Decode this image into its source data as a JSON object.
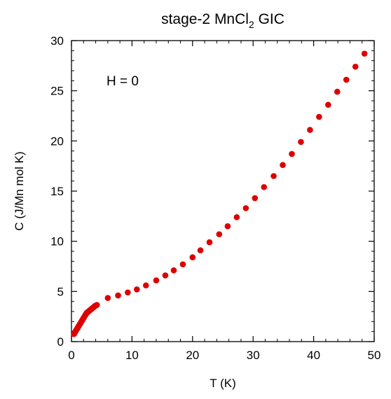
{
  "chart_data": {
    "type": "scatter",
    "title_main": "stage-2 MnCl",
    "title_sub": "2",
    "title_end": " GIC",
    "xlabel": "T (K)",
    "ylabel": "C (J/Mn mol K)",
    "annotation": "H = 0",
    "xlim": [
      0,
      50
    ],
    "ylim": [
      0,
      30
    ],
    "xticks": [
      "0",
      "10",
      "20",
      "30",
      "40",
      "50"
    ],
    "yticks": [
      "0",
      "5",
      "10",
      "15",
      "20",
      "25",
      "30"
    ],
    "grid": false,
    "marker_color": "#dd0000",
    "series": [
      {
        "x": [
          0.4,
          0.5,
          0.6,
          0.7,
          0.8,
          0.9,
          1.0,
          1.1,
          1.2,
          1.3,
          1.4,
          1.5,
          1.6,
          1.7,
          1.8,
          1.9,
          2.0,
          2.1,
          2.2,
          2.3,
          2.4,
          2.5,
          2.6,
          2.7,
          2.8,
          2.9,
          3.0,
          3.1,
          3.2,
          3.3,
          3.4,
          3.5,
          3.6,
          3.7,
          3.8,
          3.9,
          4.0,
          4.2,
          6.0,
          7.7,
          9.3,
          10.8,
          12.3,
          14.0,
          15.5,
          16.9,
          18.4,
          20.0,
          21.3,
          22.8,
          24.4,
          25.8,
          27.3,
          28.8,
          30.3,
          31.8,
          33.4,
          34.9,
          36.4,
          37.9,
          39.4,
          40.9,
          42.4,
          43.9,
          45.4,
          46.9,
          48.4
        ],
        "y": [
          0.75,
          0.85,
          0.95,
          1.05,
          1.15,
          1.25,
          1.35,
          1.45,
          1.55,
          1.65,
          1.75,
          1.85,
          1.95,
          2.05,
          2.15,
          2.25,
          2.35,
          2.45,
          2.55,
          2.65,
          2.75,
          2.85,
          2.9,
          2.95,
          3.0,
          3.05,
          3.1,
          3.15,
          3.2,
          3.25,
          3.3,
          3.35,
          3.4,
          3.45,
          3.5,
          3.55,
          3.6,
          3.65,
          4.35,
          4.6,
          4.9,
          5.2,
          5.6,
          6.1,
          6.6,
          7.1,
          7.7,
          8.4,
          9.1,
          9.9,
          10.7,
          11.5,
          12.4,
          13.3,
          14.3,
          15.4,
          16.5,
          17.6,
          18.7,
          19.9,
          21.1,
          22.4,
          23.6,
          24.9,
          26.1,
          27.4,
          28.7
        ]
      }
    ]
  }
}
